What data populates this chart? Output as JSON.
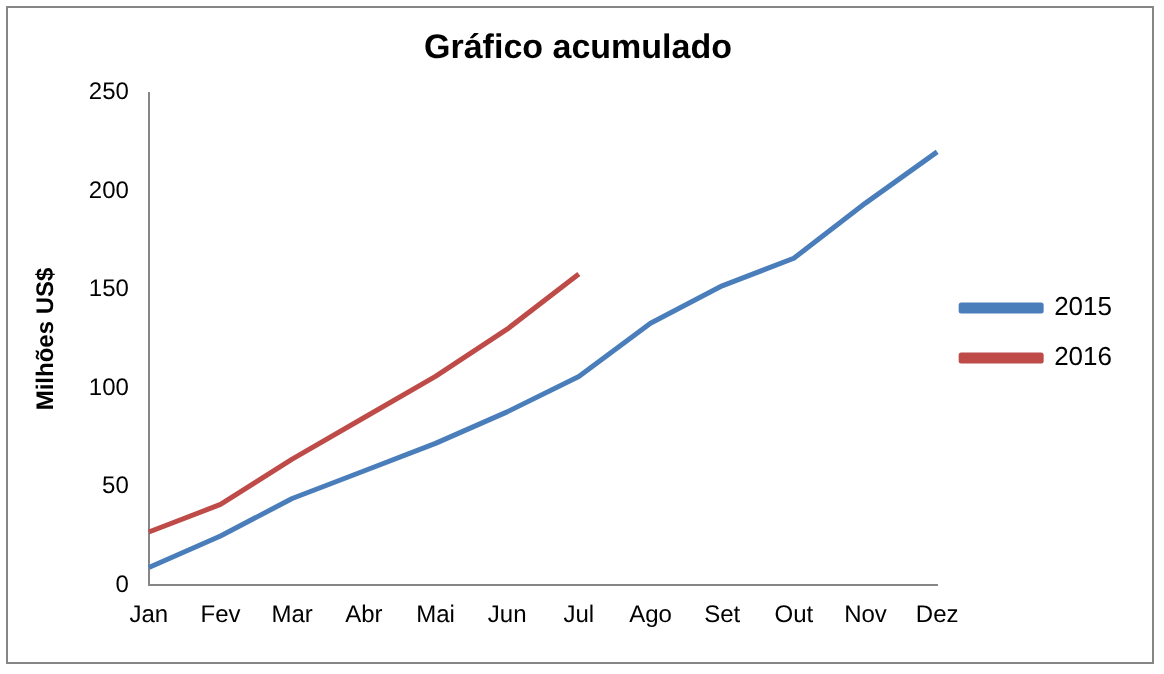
{
  "chart_data": {
    "type": "line",
    "title": "Gráfico acumulado",
    "ylabel": "Milhões US$",
    "categories": [
      "Jan",
      "Fev",
      "Mar",
      "Abr",
      "Mai",
      "Jun",
      "Jul",
      "Ago",
      "Set",
      "Out",
      "Nov",
      "Dez"
    ],
    "series": [
      {
        "name": "2015",
        "color": "#4a7ebb",
        "values": [
          9,
          25,
          44,
          58,
          72,
          88,
          106,
          133,
          152,
          166,
          194,
          220
        ]
      },
      {
        "name": "2016",
        "color": "#be4b48",
        "values": [
          27,
          41,
          64,
          85,
          106,
          130,
          158,
          null,
          null,
          null,
          null,
          null
        ]
      }
    ],
    "ylim": [
      0,
      250
    ],
    "yticks": [
      0,
      50,
      100,
      150,
      200,
      250
    ],
    "grid": false,
    "legend": "right",
    "marker": "none",
    "line_style": "solid"
  }
}
